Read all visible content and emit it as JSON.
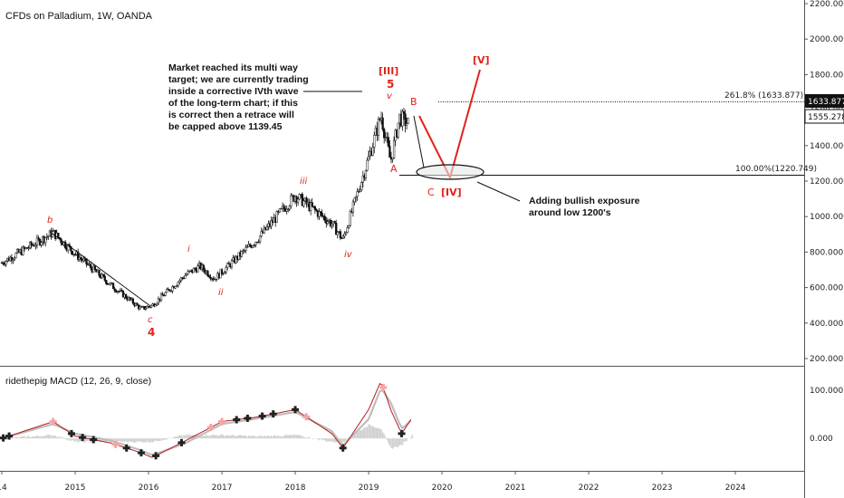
{
  "header": {
    "title": "CFDs on Palladium, 1W, OANDA"
  },
  "colors": {
    "wave_red": "#e0231b",
    "candle": "#111111",
    "macd_line": "#b71c1c",
    "signal_line": "#bdbdbd",
    "hist": "#cfcfcf",
    "buy_marker": "#222222",
    "sell_marker": "#f4a3a3",
    "price_tag_dark": "#111111"
  },
  "price_axis": {
    "ticks": [
      "2200.000",
      "2000.000",
      "1800.000",
      "1600.000",
      "1400.000",
      "1200.000",
      "1000.000",
      "800.000",
      "600.000",
      "400.000",
      "200.000"
    ],
    "tag_upper": "1633.877",
    "tag_lower": "1555.278"
  },
  "macd_axis": {
    "ticks": [
      "100.000",
      "0.000"
    ]
  },
  "time_axis": {
    "labels": [
      "14",
      "2015",
      "2016",
      "2017",
      "2018",
      "2019",
      "2020",
      "2021",
      "2022",
      "2023",
      "2024"
    ]
  },
  "levels": {
    "fib_261": "261.8% (1633.877)",
    "fib_100": "100.00%(1220.749)"
  },
  "waves": {
    "b": "b",
    "c": "c",
    "four": "4",
    "i": "i",
    "ii": "ii",
    "iii": "iii",
    "iv": "iv",
    "v": "v",
    "III": "[III]",
    "five": "5",
    "A": "A",
    "B": "B",
    "C": "C",
    "IV": "[IV]",
    "V": "[V]"
  },
  "annotations": {
    "market_note": [
      "Market reached its multi way",
      "target; we are currently trading",
      "inside a corrective IVth wave",
      "of the long-term chart; if this",
      "is correct then a retrace will",
      "be capped above 1139.45"
    ],
    "exposure_note": [
      "Adding bullish exposure",
      "around low 1200's"
    ]
  },
  "macd": {
    "title": "ridethepig MACD (12, 26, 9, close)"
  },
  "chart_data": {
    "type": "candlestick",
    "title": "CFDs on Palladium, 1W, OANDA",
    "ylim": [
      200,
      2200
    ],
    "x_range": [
      "2014",
      "2024"
    ],
    "series": [
      {
        "name": "price (weekly close, approx.)",
        "x": [
          "2014.0",
          "2014.5",
          "2014.7",
          "2015.0",
          "2015.5",
          "2015.9",
          "2016.05",
          "2016.5",
          "2016.7",
          "2016.9",
          "2017.5",
          "2018.0",
          "2018.5",
          "2018.65",
          "2019.0",
          "2019.17",
          "2019.3",
          "2019.42",
          "2019.55"
        ],
        "values": [
          740,
          860,
          910,
          790,
          610,
          480,
          500,
          670,
          720,
          650,
          880,
          1120,
          960,
          870,
          1330,
          1570,
          1310,
          1560,
          1520
        ]
      }
    ],
    "levels": [
      {
        "label": "261.8% (1633.877)",
        "value": 1633.877
      },
      {
        "label": "100.00%(1220.749)",
        "value": 1220.749
      }
    ],
    "projection": {
      "points": [
        {
          "label": "B",
          "x": "2019.5",
          "value": 1560
        },
        {
          "label": "[IV]",
          "x": "2019.95",
          "value": 1200
        },
        {
          "label": "[V]",
          "x": "2020.4",
          "value": 1800
        }
      ]
    },
    "macd": {
      "name": "ridethepig MACD (12, 26, 9, close)",
      "ylim": [
        -60,
        140
      ],
      "x": [
        "2014.0",
        "2014.7",
        "2015.0",
        "2015.5",
        "2015.9",
        "2016.05",
        "2016.5",
        "2017.0",
        "2017.5",
        "2018.0",
        "2018.5",
        "2018.65",
        "2019.0",
        "2019.17",
        "2019.3",
        "2019.45",
        "2019.6"
      ],
      "macd_values": [
        0,
        35,
        5,
        -10,
        -30,
        -40,
        -5,
        35,
        45,
        60,
        10,
        -20,
        60,
        120,
        60,
        10,
        45
      ],
      "signal_values": [
        0,
        30,
        10,
        -5,
        -25,
        -35,
        -10,
        30,
        42,
        55,
        15,
        -15,
        40,
        105,
        75,
        20,
        40
      ]
    }
  }
}
